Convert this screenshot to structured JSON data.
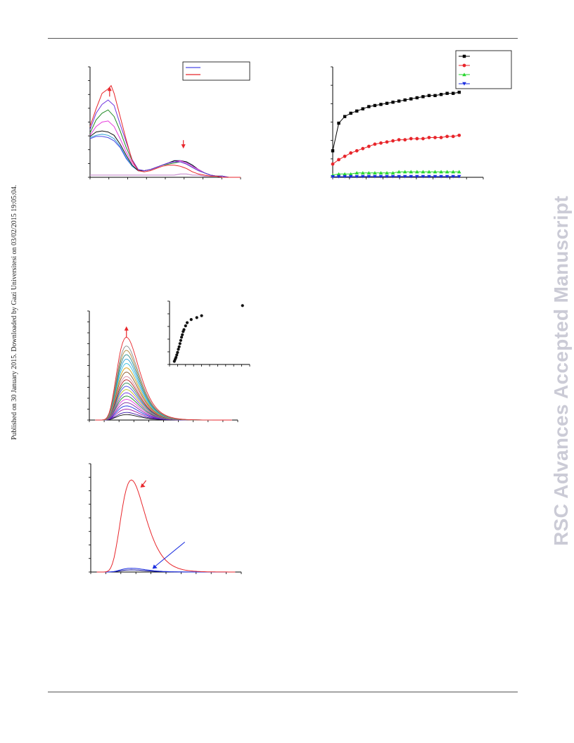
{
  "page": {
    "sidebar_text": "Published on 30 January 2015. Downloaded by Gazi Universitesi on 03/02/2015 19:05:04.",
    "watermark": "RSC Advances Accepted Manuscript"
  },
  "chart_data": [
    {
      "id": "panel-absorbance-spectra",
      "type": "line",
      "title": "",
      "xlabel": "",
      "ylabel": "",
      "xlim": [
        0,
        100
      ],
      "ylim": [
        0,
        1
      ],
      "annotations": [
        {
          "type": "arrow",
          "direction": "up",
          "at": [
            13,
            0.82
          ],
          "color": "#e8262b"
        },
        {
          "type": "arrow",
          "direction": "down",
          "at": [
            62,
            0.26
          ],
          "color": "#e8262b"
        }
      ],
      "legend": {
        "placement": "top-right",
        "entries": [
          {
            "name": "",
            "color": "#4a4ae6"
          },
          {
            "name": "",
            "color": "#e8262b"
          }
        ]
      },
      "series": [
        {
          "name": "",
          "color": "#e8262b",
          "x": [
            0,
            4,
            8,
            12,
            14,
            16,
            20,
            24,
            28,
            32,
            36,
            40,
            44,
            48,
            52,
            56,
            60,
            62,
            64,
            68,
            72,
            76,
            80,
            84,
            88,
            92,
            96,
            100
          ],
          "y": [
            0.46,
            0.62,
            0.76,
            0.8,
            0.83,
            0.76,
            0.55,
            0.34,
            0.15,
            0.06,
            0.05,
            0.06,
            0.08,
            0.1,
            0.11,
            0.11,
            0.1,
            0.09,
            0.08,
            0.05,
            0.03,
            0.02,
            0.01,
            0.01,
            0.0,
            0.0,
            0.0,
            0.0
          ]
        },
        {
          "name": "",
          "color": "#6f35e0",
          "x": [
            0,
            4,
            8,
            12,
            16,
            20,
            24,
            28,
            32,
            36,
            40,
            44,
            48,
            52,
            56,
            60,
            64,
            68,
            72,
            76,
            80,
            84,
            88,
            92,
            96,
            100
          ],
          "y": [
            0.43,
            0.58,
            0.66,
            0.7,
            0.65,
            0.48,
            0.32,
            0.16,
            0.07,
            0.06,
            0.07,
            0.09,
            0.11,
            0.13,
            0.14,
            0.14,
            0.12,
            0.09,
            0.06,
            0.04,
            0.02,
            0.01,
            0.01,
            0.0,
            0.0,
            0.0
          ]
        },
        {
          "name": "",
          "color": "#1f8a23",
          "x": [
            0,
            4,
            8,
            12,
            16,
            20,
            24,
            28,
            32,
            36,
            40,
            44,
            48,
            52,
            56,
            60,
            64,
            68,
            72,
            76,
            80,
            84,
            88,
            92,
            96,
            100
          ],
          "y": [
            0.4,
            0.52,
            0.58,
            0.61,
            0.55,
            0.42,
            0.27,
            0.15,
            0.07,
            0.06,
            0.07,
            0.09,
            0.11,
            0.12,
            0.13,
            0.14,
            0.12,
            0.09,
            0.06,
            0.04,
            0.02,
            0.01,
            0.01,
            0.0,
            0.0,
            0.0
          ]
        },
        {
          "name": "",
          "color": "#e63cdc",
          "x": [
            0,
            4,
            8,
            12,
            16,
            20,
            24,
            28,
            32,
            36,
            40,
            44,
            48,
            52,
            56,
            60,
            64,
            68,
            72,
            76,
            80,
            84,
            88,
            92,
            96,
            100
          ],
          "y": [
            0.38,
            0.46,
            0.5,
            0.51,
            0.46,
            0.35,
            0.23,
            0.13,
            0.07,
            0.06,
            0.07,
            0.09,
            0.11,
            0.13,
            0.14,
            0.15,
            0.13,
            0.1,
            0.07,
            0.04,
            0.02,
            0.01,
            0.01,
            0.0,
            0.0,
            0.0
          ]
        },
        {
          "name": "",
          "color": "#111111",
          "x": [
            0,
            4,
            8,
            12,
            16,
            20,
            24,
            28,
            32,
            36,
            40,
            44,
            48,
            52,
            56,
            60,
            64,
            68,
            72,
            76,
            80,
            84,
            88,
            92,
            96,
            100
          ],
          "y": [
            0.37,
            0.41,
            0.42,
            0.41,
            0.38,
            0.3,
            0.2,
            0.11,
            0.06,
            0.06,
            0.07,
            0.09,
            0.11,
            0.13,
            0.15,
            0.15,
            0.14,
            0.11,
            0.07,
            0.04,
            0.02,
            0.01,
            0.01,
            0.0,
            0.0,
            0.0
          ]
        },
        {
          "name": "",
          "color": "#2a9fd6",
          "x": [
            0,
            4,
            8,
            12,
            16,
            20,
            24,
            28,
            32,
            36,
            40,
            44,
            48,
            52,
            56,
            60,
            64,
            68,
            72,
            76,
            80,
            84,
            88,
            92,
            96,
            100
          ],
          "y": [
            0.36,
            0.38,
            0.39,
            0.38,
            0.35,
            0.28,
            0.18,
            0.1,
            0.06,
            0.06,
            0.07,
            0.09,
            0.11,
            0.13,
            0.15,
            0.15,
            0.14,
            0.11,
            0.07,
            0.04,
            0.02,
            0.01,
            0.01,
            0.0,
            0.0,
            0.0
          ]
        },
        {
          "name": "",
          "color": "#4a4ae6",
          "x": [
            0,
            4,
            8,
            12,
            16,
            20,
            24,
            28,
            32,
            36,
            40,
            44,
            48,
            52,
            56,
            60,
            64,
            68,
            72,
            76,
            80,
            84,
            88,
            92,
            96,
            100
          ],
          "y": [
            0.35,
            0.37,
            0.37,
            0.36,
            0.33,
            0.27,
            0.17,
            0.1,
            0.06,
            0.06,
            0.07,
            0.09,
            0.11,
            0.13,
            0.15,
            0.15,
            0.14,
            0.11,
            0.07,
            0.04,
            0.02,
            0.01,
            0.01,
            0.0,
            0.0,
            0.0
          ]
        },
        {
          "name": "",
          "color": "#c07fc7",
          "x": [
            0,
            4,
            8,
            12,
            16,
            20,
            24,
            28,
            32,
            36,
            40,
            44,
            48,
            52,
            56,
            60,
            64,
            68,
            72,
            76,
            80,
            84,
            88,
            92,
            96,
            100
          ],
          "y": [
            0.02,
            0.02,
            0.02,
            0.02,
            0.02,
            0.02,
            0.02,
            0.02,
            0.02,
            0.02,
            0.02,
            0.02,
            0.02,
            0.02,
            0.02,
            0.03,
            0.03,
            0.02,
            0.02,
            0.01,
            0.01,
            0.01,
            0.0,
            0.0,
            0.0,
            0.0
          ]
        }
      ]
    },
    {
      "id": "panel-time-course",
      "type": "line",
      "title": "",
      "xlabel": "",
      "ylabel": "",
      "xlim": [
        0,
        100
      ],
      "ylim": [
        0,
        1
      ],
      "legend": {
        "placement": "top-right",
        "entries": [
          {
            "name": "",
            "color": "#000000",
            "marker": "square"
          },
          {
            "name": "",
            "color": "#e8262b",
            "marker": "circle"
          },
          {
            "name": "",
            "color": "#27d62e",
            "marker": "triangle-up"
          },
          {
            "name": "",
            "color": "#1c2fe0",
            "marker": "triangle-down"
          }
        ]
      },
      "series": [
        {
          "name": "",
          "color": "#000000",
          "marker": "square",
          "x": [
            0,
            4,
            8,
            12,
            16,
            20,
            24,
            28,
            32,
            36,
            40,
            44,
            48,
            52,
            56,
            60,
            64,
            68,
            72,
            76,
            80,
            84
          ],
          "y": [
            0.24,
            0.49,
            0.55,
            0.58,
            0.6,
            0.62,
            0.64,
            0.65,
            0.66,
            0.67,
            0.68,
            0.69,
            0.7,
            0.71,
            0.72,
            0.73,
            0.74,
            0.74,
            0.75,
            0.76,
            0.76,
            0.77
          ]
        },
        {
          "name": "",
          "color": "#e8262b",
          "marker": "circle",
          "x": [
            0,
            4,
            8,
            12,
            16,
            20,
            24,
            28,
            32,
            36,
            40,
            44,
            48,
            52,
            56,
            60,
            64,
            68,
            72,
            76,
            80,
            84
          ],
          "y": [
            0.12,
            0.16,
            0.19,
            0.22,
            0.24,
            0.26,
            0.28,
            0.3,
            0.31,
            0.32,
            0.33,
            0.34,
            0.34,
            0.35,
            0.35,
            0.35,
            0.36,
            0.36,
            0.36,
            0.37,
            0.37,
            0.38
          ]
        },
        {
          "name": "",
          "color": "#27d62e",
          "marker": "triangle-up",
          "x": [
            0,
            4,
            8,
            12,
            16,
            20,
            24,
            28,
            32,
            36,
            40,
            44,
            48,
            52,
            56,
            60,
            64,
            68,
            72,
            76,
            80,
            84
          ],
          "y": [
            0.02,
            0.03,
            0.03,
            0.03,
            0.04,
            0.04,
            0.04,
            0.04,
            0.04,
            0.04,
            0.04,
            0.05,
            0.05,
            0.05,
            0.05,
            0.05,
            0.05,
            0.05,
            0.05,
            0.05,
            0.05,
            0.05
          ]
        },
        {
          "name": "",
          "color": "#1c2fe0",
          "marker": "triangle-down",
          "x": [
            0,
            4,
            8,
            12,
            16,
            20,
            24,
            28,
            32,
            36,
            40,
            44,
            48,
            52,
            56,
            60,
            64,
            68,
            72,
            76,
            80,
            84
          ],
          "y": [
            0.005,
            0.006,
            0.006,
            0.006,
            0.006,
            0.007,
            0.007,
            0.007,
            0.007,
            0.007,
            0.007,
            0.007,
            0.007,
            0.007,
            0.007,
            0.007,
            0.007,
            0.007,
            0.007,
            0.007,
            0.007,
            0.007
          ]
        }
      ]
    },
    {
      "id": "panel-emission-spectra",
      "type": "line",
      "title": "",
      "xlabel": "",
      "ylabel": "",
      "xlim": [
        0,
        100
      ],
      "ylim": [
        0,
        1
      ],
      "peak_x": 25,
      "annotations": [
        {
          "type": "arrow",
          "direction": "up",
          "at": [
            25,
            0.86
          ],
          "color": "#e8262b"
        }
      ],
      "series": [
        {
          "name": "",
          "color": "#e8262b",
          "peak": 0.76
        },
        {
          "name": "",
          "color": "#8a8a8a",
          "peak": 0.68
        },
        {
          "name": "",
          "color": "#b08a3e",
          "peak": 0.64
        },
        {
          "name": "",
          "color": "#2a8a8a",
          "peak": 0.6
        },
        {
          "name": "",
          "color": "#2a9fd6",
          "peak": 0.56
        },
        {
          "name": "",
          "color": "#3ac0e0",
          "peak": 0.52
        },
        {
          "name": "",
          "color": "#d4a017",
          "peak": 0.48
        },
        {
          "name": "",
          "color": "#8a5a2a",
          "peak": 0.44
        },
        {
          "name": "",
          "color": "#d98aa0",
          "peak": 0.4
        },
        {
          "name": "",
          "color": "#b22222",
          "peak": 0.37
        },
        {
          "name": "",
          "color": "#2e8b57",
          "peak": 0.34
        },
        {
          "name": "",
          "color": "#4a4ae6",
          "peak": 0.31
        },
        {
          "name": "",
          "color": "#c0c020",
          "peak": 0.28
        },
        {
          "name": "",
          "color": "#6f35e0",
          "peak": 0.25
        },
        {
          "name": "",
          "color": "#1f8a23",
          "peak": 0.22
        },
        {
          "name": "",
          "color": "#e63cdc",
          "peak": 0.19
        },
        {
          "name": "",
          "color": "#7a2aa0",
          "peak": 0.16
        },
        {
          "name": "",
          "color": "#1c2fe0",
          "peak": 0.13
        },
        {
          "name": "",
          "color": "#9a1aa8",
          "peak": 0.1
        },
        {
          "name": "",
          "color": "#3a1aa8",
          "peak": 0.07
        },
        {
          "name": "",
          "color": "#111111",
          "peak": 0.05
        }
      ]
    },
    {
      "id": "panel-emission-inset",
      "type": "scatter",
      "title": "",
      "xlabel": "",
      "ylabel": "",
      "xlim": [
        0,
        100
      ],
      "ylim": [
        0,
        1
      ],
      "series": [
        {
          "name": "",
          "color": "#111111",
          "x": [
            6,
            7,
            8,
            9,
            10,
            11,
            12,
            13,
            14,
            15,
            16,
            17,
            18,
            20,
            22,
            27,
            34,
            40,
            91
          ],
          "y": [
            0.05,
            0.08,
            0.11,
            0.15,
            0.19,
            0.24,
            0.28,
            0.33,
            0.38,
            0.43,
            0.47,
            0.52,
            0.55,
            0.61,
            0.66,
            0.71,
            0.74,
            0.77,
            0.93
          ]
        }
      ]
    },
    {
      "id": "panel-comparison-spectra",
      "type": "line",
      "title": "",
      "xlabel": "",
      "ylabel": "",
      "xlim": [
        0,
        100
      ],
      "ylim": [
        0,
        1
      ],
      "peak_x": 27,
      "annotations": [
        {
          "type": "arrow",
          "direction": "down-left",
          "at": [
            33,
            0.78
          ],
          "color": "#e8262b"
        },
        {
          "type": "arrow",
          "direction": "down-left",
          "at": [
            41,
            0.03
          ],
          "color": "#1c2fe0"
        }
      ],
      "series": [
        {
          "name": "",
          "color": "#e8262b",
          "peak": 0.85
        },
        {
          "name": "",
          "color": "#1c2fe0",
          "peak": 0.035
        },
        {
          "name": "",
          "color": "#111199",
          "peak": 0.02
        }
      ]
    }
  ]
}
